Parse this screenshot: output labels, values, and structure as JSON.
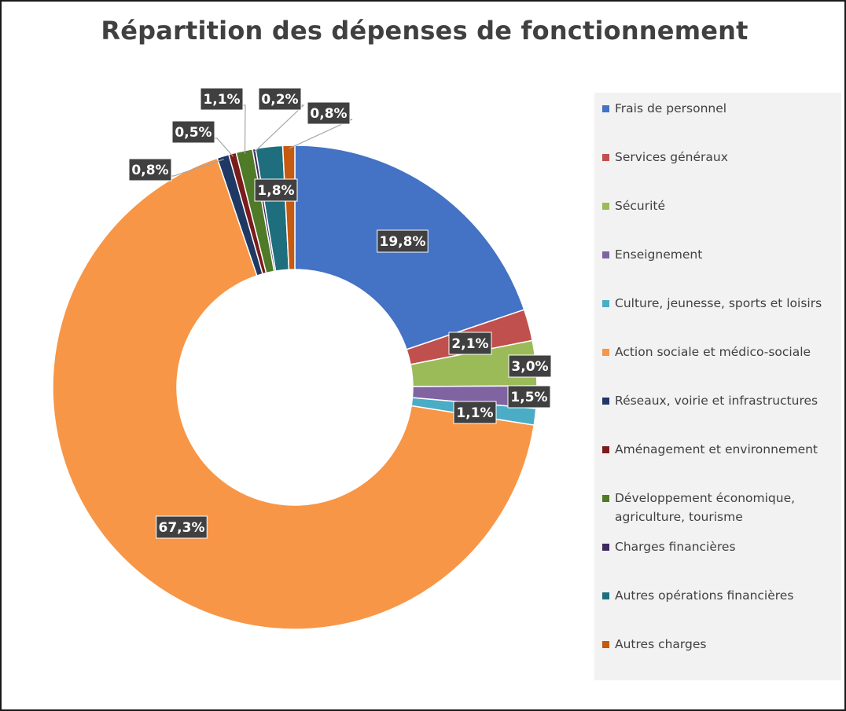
{
  "chart_data": {
    "type": "pie",
    "variant": "donut",
    "title": "Répartition des dépenses de fonctionnement",
    "legend_position": "right",
    "slices": [
      {
        "name": "Frais de personnel",
        "value": 19.8,
        "label": "19,8%",
        "color": "#4472C4"
      },
      {
        "name": "Services généraux",
        "value": 2.1,
        "label": "2,1%",
        "color": "#C0504D"
      },
      {
        "name": "Sécurité",
        "value": 3.0,
        "label": "3,0%",
        "color": "#9BBB59"
      },
      {
        "name": "Enseignement",
        "value": 1.5,
        "label": "1,5%",
        "color": "#8064A2"
      },
      {
        "name": "Culture, jeunesse, sports et loisirs",
        "value": 1.1,
        "label": "1,1%",
        "color": "#4BACC6"
      },
      {
        "name": "Action sociale et médico-sociale",
        "value": 67.3,
        "label": "67,3%",
        "color": "#F79646"
      },
      {
        "name": "Réseaux, voirie et infrastructures",
        "value": 0.8,
        "label": "0,8%",
        "color": "#1F3864"
      },
      {
        "name": "Aménagement et environnement",
        "value": 0.5,
        "label": "0,5%",
        "color": "#7B1C1C"
      },
      {
        "name": "Développement économique, agriculture, tourisme",
        "value": 1.1,
        "label": "1,1%",
        "color": "#4F7A28"
      },
      {
        "name": "Charges financières",
        "value": 0.2,
        "label": "0,2%",
        "color": "#3F2A5C"
      },
      {
        "name": "Autres opérations financières",
        "value": 1.8,
        "label": "1,8%",
        "color": "#1F6E7E"
      },
      {
        "name": "Autres charges",
        "value": 0.8,
        "label": "0,8%",
        "color": "#C55A11"
      }
    ],
    "legend_lines": [
      [
        "Frais de personnel"
      ],
      [
        "Services généraux"
      ],
      [
        "Sécurité"
      ],
      [
        "Enseignement"
      ],
      [
        "Culture, jeunesse, sports et loisirs"
      ],
      [
        "Action sociale et médico-sociale"
      ],
      [
        "Réseaux, voirie et infrastructures"
      ],
      [
        "Aménagement et environnement"
      ],
      [
        "Développement économique,",
        "agriculture, tourisme"
      ],
      [
        "Charges financières"
      ],
      [
        "Autres opérations financières"
      ],
      [
        "Autres charges"
      ]
    ]
  }
}
